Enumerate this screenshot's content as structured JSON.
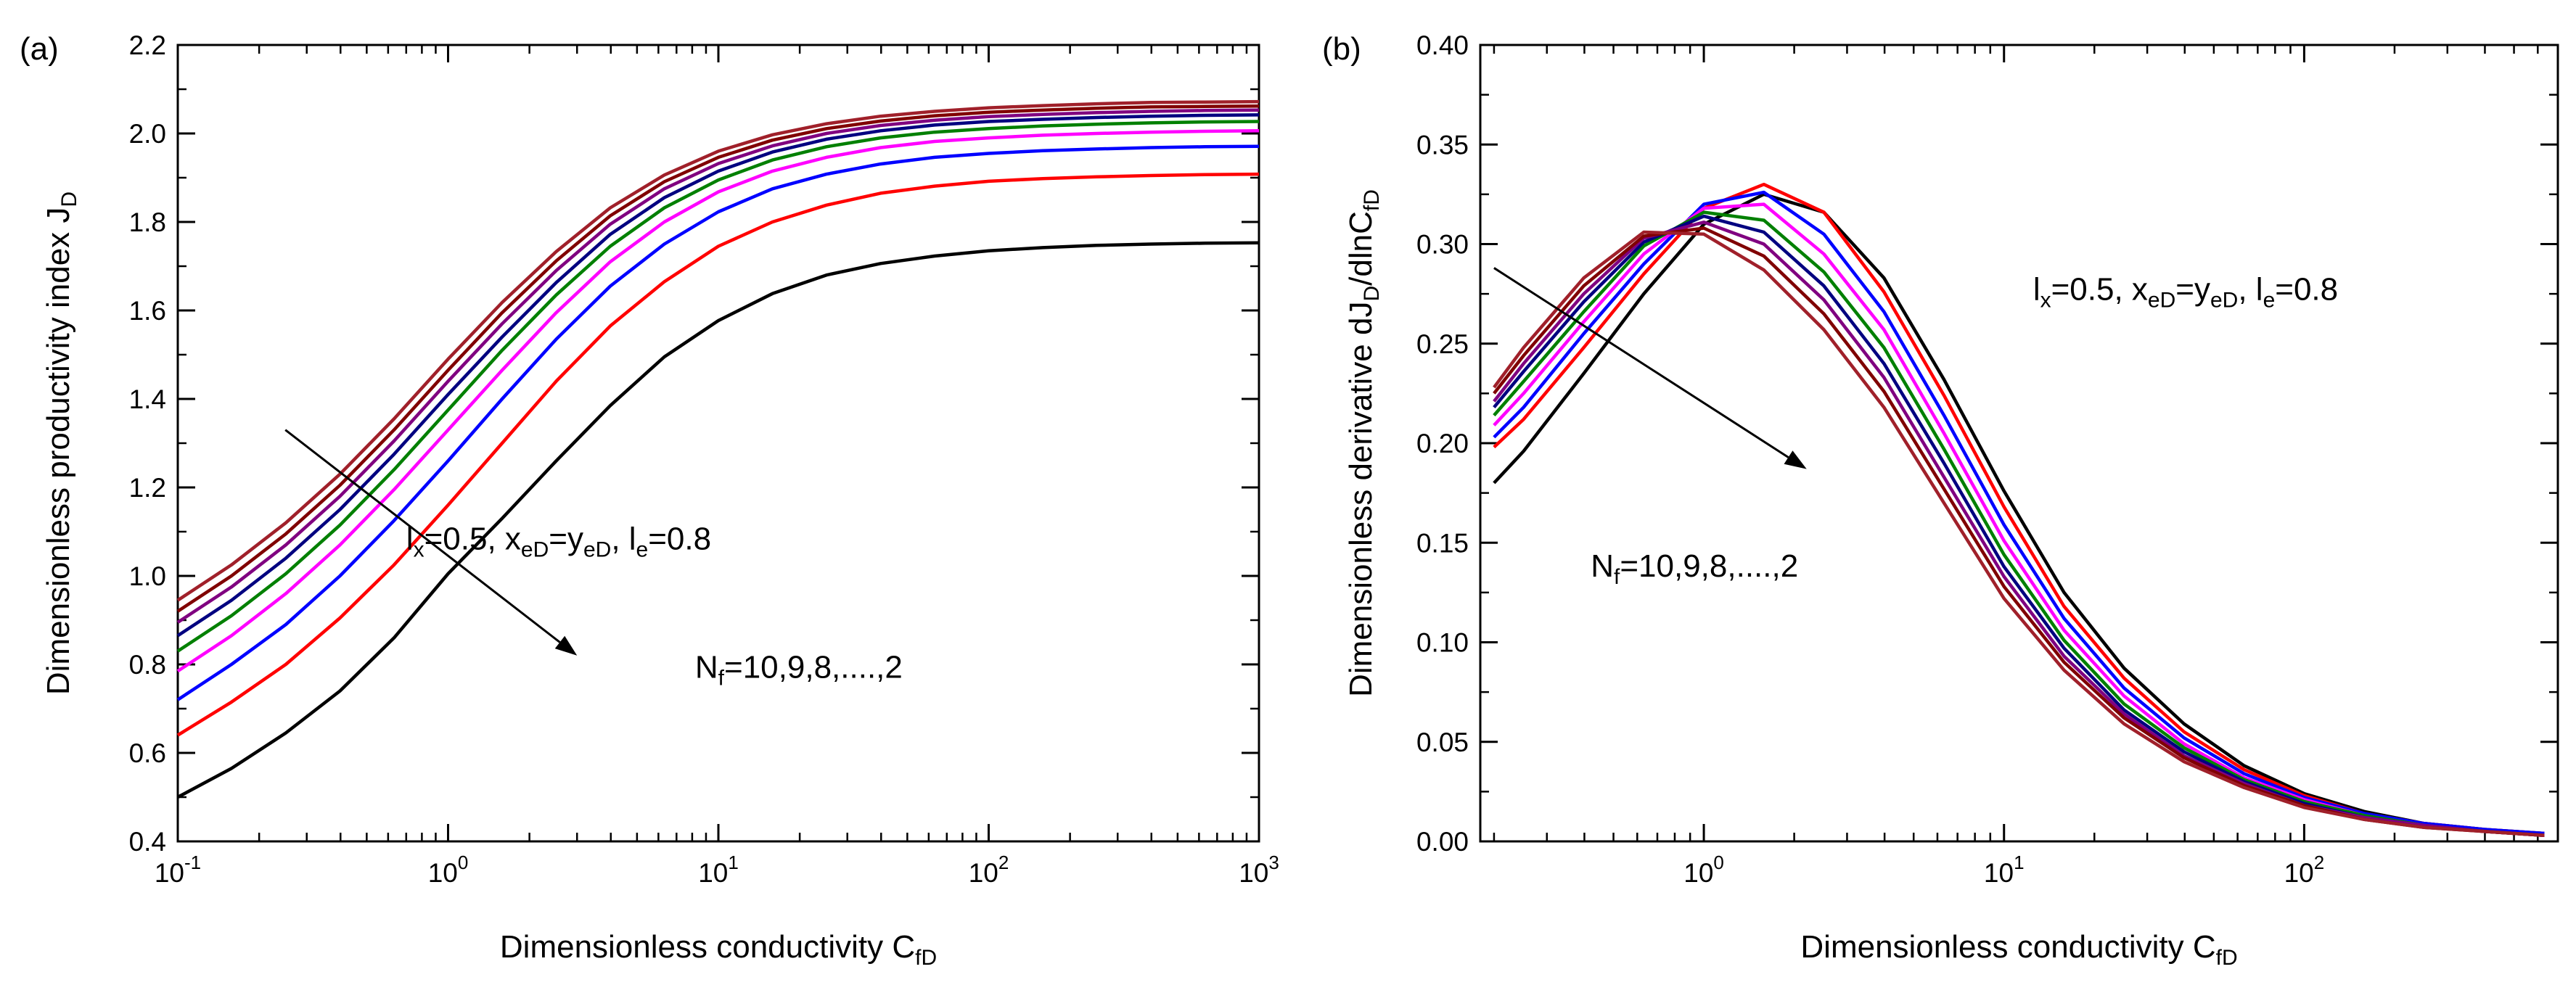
{
  "chart_data": [
    {
      "type": "line",
      "panel_label": "(a)",
      "xlabel": "Dimensionless conductivity C",
      "xlabel_sub": "fD",
      "ylabel": "Dimensionless productivity index J",
      "ylabel_sub": "D",
      "x_scale": "log",
      "xlim": [
        0.1,
        1000
      ],
      "ylim": [
        0.4,
        2.2
      ],
      "x_ticks": [
        {
          "value": 0.1,
          "base": "10",
          "exp": "-1"
        },
        {
          "value": 1,
          "base": "10",
          "exp": "0"
        },
        {
          "value": 10,
          "base": "10",
          "exp": "1"
        },
        {
          "value": 100,
          "base": "10",
          "exp": "2"
        },
        {
          "value": 1000,
          "base": "10",
          "exp": "3"
        }
      ],
      "y_ticks": [
        {
          "value": 0.4,
          "label": "0.4"
        },
        {
          "value": 0.6,
          "label": "0.6"
        },
        {
          "value": 0.8,
          "label": "0.8"
        },
        {
          "value": 1.0,
          "label": "1.0"
        },
        {
          "value": 1.2,
          "label": "1.2"
        },
        {
          "value": 1.4,
          "label": "1.4"
        },
        {
          "value": 1.6,
          "label": "1.6"
        },
        {
          "value": 1.8,
          "label": "1.8"
        },
        {
          "value": 2.0,
          "label": "2.0"
        },
        {
          "value": 2.2,
          "label": "2.2"
        }
      ],
      "grid": false,
      "annotation_params": {
        "pos": [
          0.7,
          1.06
        ],
        "parts": [
          {
            "t": "l"
          },
          {
            "t": "x",
            "s": "sub"
          },
          {
            "t": "=0.5, x"
          },
          {
            "t": "eD",
            "s": "sub"
          },
          {
            "t": "=y"
          },
          {
            "t": "eD",
            "s": "sub"
          },
          {
            "t": ", l"
          },
          {
            "t": "e",
            "s": "sub"
          },
          {
            "t": "=0.8"
          }
        ]
      },
      "annotation_nf": {
        "pos": [
          8.2,
          0.77
        ],
        "parts": [
          {
            "t": "N"
          },
          {
            "t": "f",
            "s": "sub"
          },
          {
            "t": "=10,9,8,....,2"
          }
        ]
      },
      "arrow": {
        "from": [
          0.25,
          1.33
        ],
        "to": [
          3.0,
          0.82
        ]
      },
      "x": [
        0.1,
        0.158,
        0.251,
        0.398,
        0.631,
        1.0,
        1.585,
        2.512,
        3.981,
        6.31,
        10,
        15.85,
        25.12,
        39.81,
        63.1,
        100,
        158.5,
        251.2,
        398.1,
        631,
        1000
      ],
      "series": [
        {
          "color": "#000000",
          "values": [
            0.5,
            0.565,
            0.645,
            0.74,
            0.86,
            1.005,
            1.13,
            1.26,
            1.385,
            1.495,
            1.577,
            1.638,
            1.68,
            1.706,
            1.723,
            1.735,
            1.742,
            1.747,
            1.75,
            1.752,
            1.753
          ]
        },
        {
          "color": "#ff0000",
          "values": [
            0.64,
            0.715,
            0.8,
            0.905,
            1.025,
            1.16,
            1.3,
            1.44,
            1.565,
            1.665,
            1.745,
            1.8,
            1.838,
            1.865,
            1.881,
            1.892,
            1.898,
            1.902,
            1.905,
            1.907,
            1.908
          ]
        },
        {
          "color": "#0000ff",
          "values": [
            0.72,
            0.8,
            0.89,
            1.0,
            1.125,
            1.26,
            1.4,
            1.535,
            1.655,
            1.75,
            1.823,
            1.875,
            1.908,
            1.931,
            1.946,
            1.955,
            1.961,
            1.965,
            1.968,
            1.97,
            1.971
          ]
        },
        {
          "color": "#ff00ff",
          "values": [
            0.785,
            0.865,
            0.96,
            1.07,
            1.195,
            1.33,
            1.465,
            1.595,
            1.71,
            1.8,
            1.868,
            1.915,
            1.946,
            1.968,
            1.982,
            1.99,
            1.996,
            2.0,
            2.003,
            2.005,
            2.006
          ]
        },
        {
          "color": "#008000",
          "values": [
            0.83,
            0.91,
            1.005,
            1.115,
            1.24,
            1.375,
            1.51,
            1.635,
            1.745,
            1.832,
            1.895,
            1.94,
            1.97,
            1.99,
            2.003,
            2.011,
            2.017,
            2.021,
            2.024,
            2.026,
            2.027
          ]
        },
        {
          "color": "#000080",
          "values": [
            0.865,
            0.945,
            1.04,
            1.15,
            1.275,
            1.41,
            1.54,
            1.663,
            1.772,
            1.855,
            1.915,
            1.958,
            1.987,
            2.006,
            2.019,
            2.027,
            2.032,
            2.036,
            2.039,
            2.041,
            2.042
          ]
        },
        {
          "color": "#800080",
          "values": [
            0.895,
            0.975,
            1.07,
            1.18,
            1.305,
            1.44,
            1.57,
            1.69,
            1.795,
            1.875,
            1.932,
            1.972,
            2.0,
            2.018,
            2.03,
            2.038,
            2.043,
            2.047,
            2.05,
            2.052,
            2.053
          ]
        },
        {
          "color": "#800000",
          "values": [
            0.92,
            1.0,
            1.095,
            1.205,
            1.33,
            1.465,
            1.595,
            1.712,
            1.814,
            1.891,
            1.946,
            1.985,
            2.011,
            2.028,
            2.04,
            2.048,
            2.053,
            2.057,
            2.06,
            2.061,
            2.062
          ]
        },
        {
          "color": "#a0202a",
          "values": [
            0.945,
            1.025,
            1.12,
            1.23,
            1.355,
            1.49,
            1.618,
            1.733,
            1.832,
            1.906,
            1.96,
            1.997,
            2.022,
            2.039,
            2.05,
            2.058,
            2.063,
            2.067,
            2.07,
            2.071,
            2.072
          ]
        }
      ]
    },
    {
      "type": "line",
      "panel_label": "(b)",
      "xlabel": "Dimensionless conductivity C",
      "xlabel_sub": "fD",
      "ylabel": "Dimensionless derivative dJ",
      "ylabel_sub": "D",
      "ylabel_mid": "/dlnC",
      "ylabel_sub2": "fD",
      "x_scale": "log",
      "xlim": [
        0.18,
        700
      ],
      "ylim": [
        0.0,
        0.4
      ],
      "x_ticks": [
        {
          "value": 1,
          "base": "10",
          "exp": "0"
        },
        {
          "value": 10,
          "base": "10",
          "exp": "1"
        },
        {
          "value": 100,
          "base": "10",
          "exp": "2"
        }
      ],
      "y_ticks": [
        {
          "value": 0.0,
          "label": "0.00"
        },
        {
          "value": 0.05,
          "label": "0.05"
        },
        {
          "value": 0.1,
          "label": "0.10"
        },
        {
          "value": 0.15,
          "label": "0.15"
        },
        {
          "value": 0.2,
          "label": "0.20"
        },
        {
          "value": 0.25,
          "label": "0.25"
        },
        {
          "value": 0.3,
          "label": "0.30"
        },
        {
          "value": 0.35,
          "label": "0.35"
        },
        {
          "value": 0.4,
          "label": "0.40"
        }
      ],
      "grid": false,
      "annotation_params": {
        "pos": [
          12.5,
          0.272
        ],
        "parts": [
          {
            "t": "l"
          },
          {
            "t": "x",
            "s": "sub"
          },
          {
            "t": "=0.5, x"
          },
          {
            "t": "eD",
            "s": "sub"
          },
          {
            "t": "=y"
          },
          {
            "t": "eD",
            "s": "sub"
          },
          {
            "t": ", l"
          },
          {
            "t": "e",
            "s": "sub"
          },
          {
            "t": "=0.8"
          }
        ]
      },
      "annotation_nf": {
        "pos": [
          0.42,
          0.133
        ],
        "parts": [
          {
            "t": "N"
          },
          {
            "t": "f",
            "s": "sub"
          },
          {
            "t": "=10,9,8,....,2"
          }
        ]
      },
      "arrow": {
        "from": [
          0.2,
          0.288
        ],
        "to": [
          2.2,
          0.187
        ]
      },
      "x": [
        0.2,
        0.251,
        0.398,
        0.631,
        1.0,
        1.585,
        2.512,
        3.981,
        6.31,
        10,
        15.85,
        25.12,
        39.81,
        63.1,
        100,
        158.5,
        251.2,
        398.1,
        631
      ],
      "series": [
        {
          "color": "#000000",
          "values": [
            0.18,
            0.196,
            0.235,
            0.275,
            0.31,
            0.325,
            0.316,
            0.283,
            0.232,
            0.176,
            0.125,
            0.087,
            0.059,
            0.038,
            0.024,
            0.015,
            0.009,
            0.006,
            0.004
          ]
        },
        {
          "color": "#ff0000",
          "values": [
            0.198,
            0.212,
            0.248,
            0.285,
            0.318,
            0.33,
            0.316,
            0.276,
            0.224,
            0.168,
            0.118,
            0.082,
            0.055,
            0.036,
            0.023,
            0.014,
            0.009,
            0.006,
            0.004
          ]
        },
        {
          "color": "#0000ff",
          "values": [
            0.203,
            0.218,
            0.255,
            0.29,
            0.32,
            0.326,
            0.305,
            0.266,
            0.214,
            0.159,
            0.112,
            0.077,
            0.052,
            0.034,
            0.022,
            0.014,
            0.009,
            0.006,
            0.004
          ]
        },
        {
          "color": "#ff00ff",
          "values": [
            0.209,
            0.225,
            0.261,
            0.295,
            0.318,
            0.32,
            0.295,
            0.257,
            0.205,
            0.151,
            0.106,
            0.073,
            0.049,
            0.032,
            0.021,
            0.013,
            0.008,
            0.005,
            0.003
          ]
        },
        {
          "color": "#008000",
          "values": [
            0.214,
            0.231,
            0.266,
            0.299,
            0.316,
            0.312,
            0.286,
            0.248,
            0.197,
            0.144,
            0.101,
            0.069,
            0.047,
            0.031,
            0.02,
            0.013,
            0.008,
            0.005,
            0.003
          ]
        },
        {
          "color": "#000080",
          "values": [
            0.218,
            0.236,
            0.271,
            0.301,
            0.314,
            0.306,
            0.279,
            0.24,
            0.19,
            0.138,
            0.097,
            0.066,
            0.045,
            0.03,
            0.019,
            0.012,
            0.008,
            0.005,
            0.003
          ]
        },
        {
          "color": "#800080",
          "values": [
            0.221,
            0.24,
            0.275,
            0.303,
            0.311,
            0.3,
            0.272,
            0.233,
            0.183,
            0.133,
            0.093,
            0.064,
            0.043,
            0.029,
            0.018,
            0.012,
            0.008,
            0.005,
            0.003
          ]
        },
        {
          "color": "#800000",
          "values": [
            0.225,
            0.244,
            0.279,
            0.304,
            0.308,
            0.294,
            0.265,
            0.226,
            0.177,
            0.128,
            0.09,
            0.062,
            0.042,
            0.028,
            0.018,
            0.011,
            0.007,
            0.005,
            0.003
          ]
        },
        {
          "color": "#a0202a",
          "values": [
            0.228,
            0.248,
            0.283,
            0.306,
            0.305,
            0.287,
            0.257,
            0.218,
            0.17,
            0.122,
            0.086,
            0.059,
            0.04,
            0.027,
            0.017,
            0.011,
            0.007,
            0.005,
            0.003
          ]
        }
      ]
    }
  ]
}
